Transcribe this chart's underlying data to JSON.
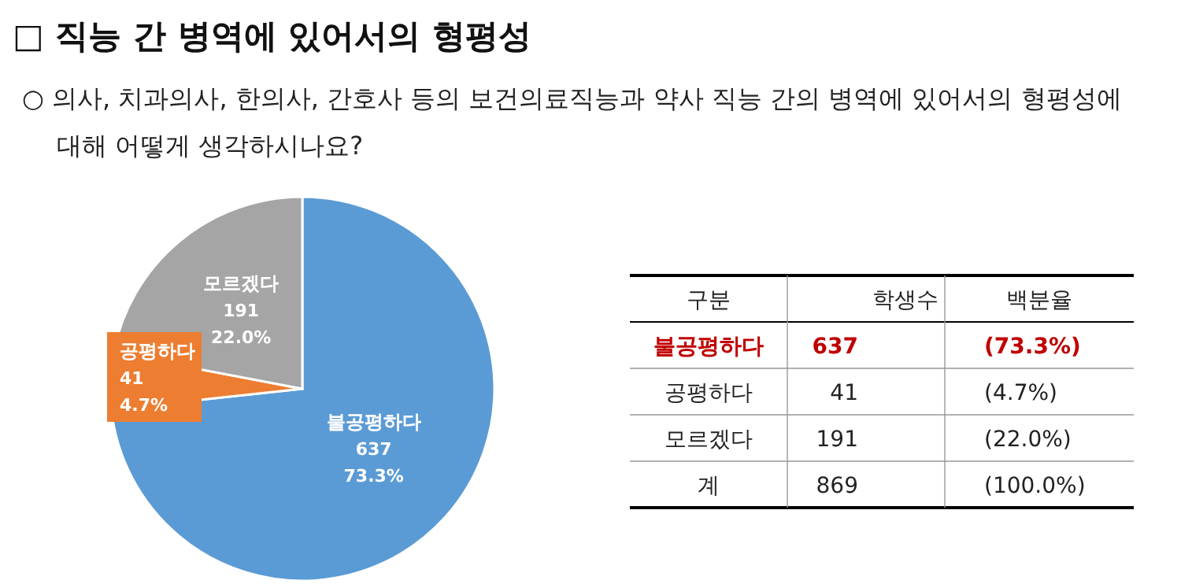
{
  "chart_data": {
    "type": "pie",
    "title": "□ 직능 간 병역에 있어서의 형평성",
    "subtitle": "○ 의사, 치과의사, 한의사, 간호사 등의 보건의료직능과 약사 직능 간의 병역에 있어서의 형평성에 대해 어떻게 생각하시나요?",
    "categories": [
      "불공평하다",
      "공평하다",
      "모르겠다"
    ],
    "values": [
      73.3,
      4.7,
      22.0
    ],
    "colors": [
      "#5b9bd5",
      "#ed7d31",
      "#a5a5a5"
    ],
    "value_labels": [
      "73.3%",
      "4.7%",
      "22.0%"
    ],
    "annotations": [
      "구분",
      "학생수",
      "백분율",
      "637",
      "(73.3%)",
      "41",
      "(4.7%)",
      "191",
      "(22.0%)",
      "계",
      "869",
      "(100.0%)"
    ]
  }
}
